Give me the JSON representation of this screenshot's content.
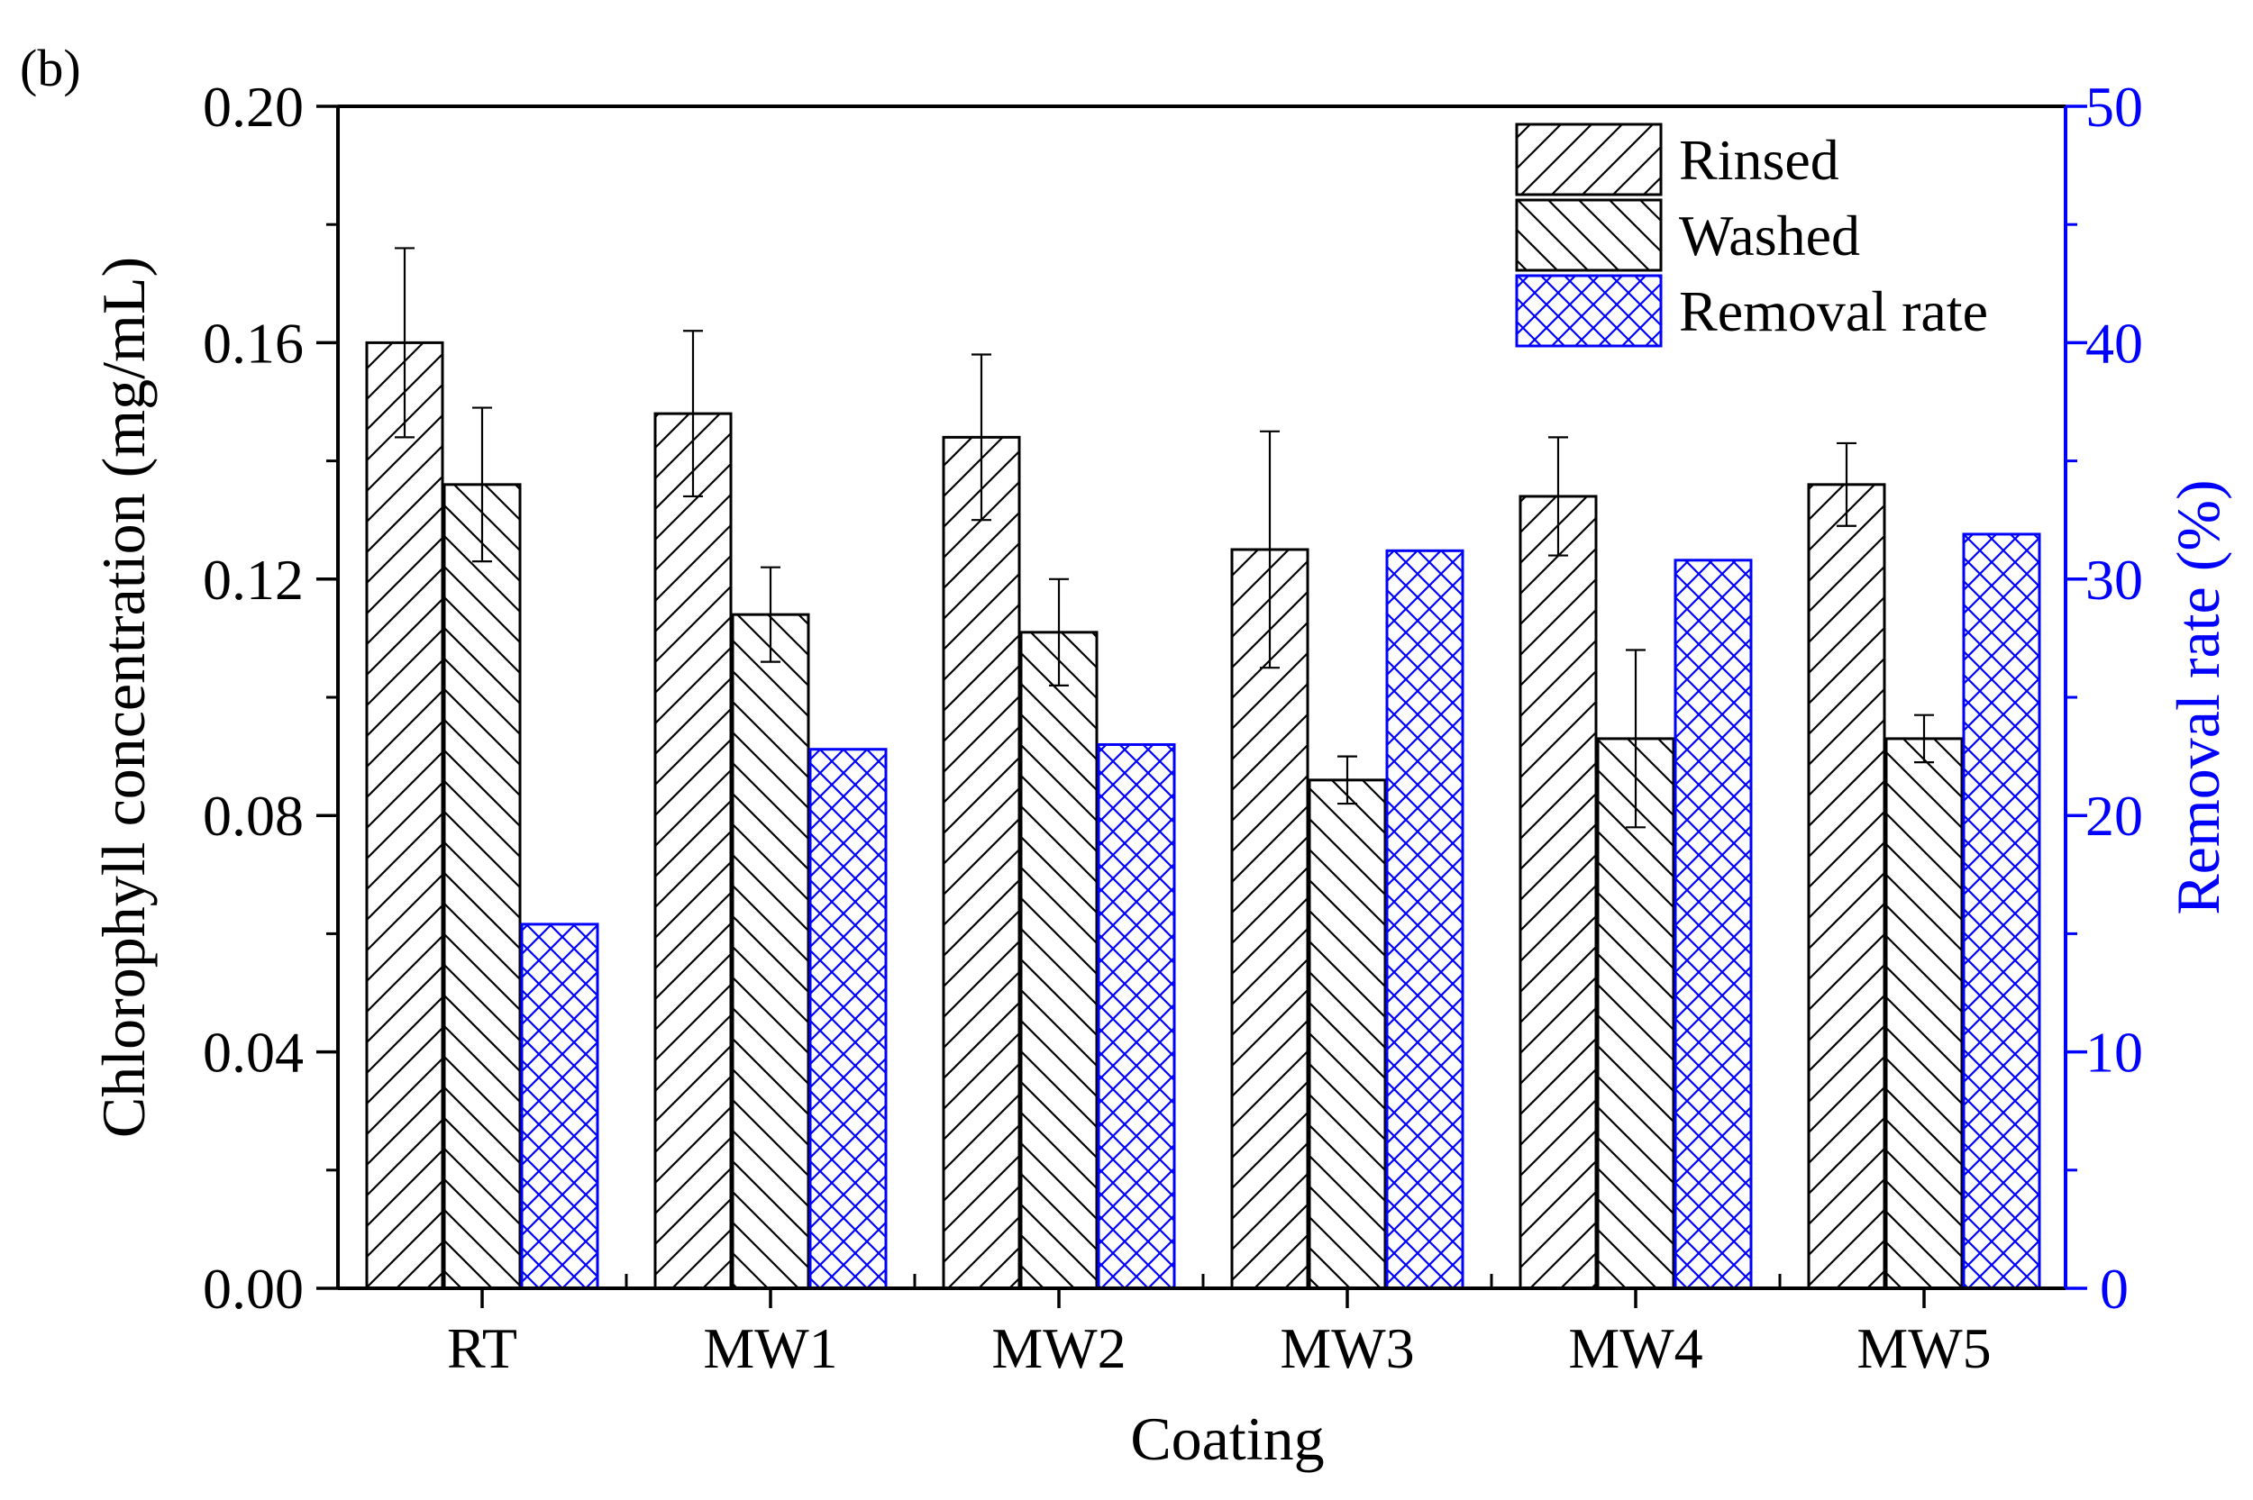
{
  "panel_label": "(b)",
  "chart_data": {
    "type": "bar",
    "title": "",
    "xlabel": "Coating",
    "ylabel": "Chlorophyll concentration (mg/mL)",
    "y2label": "Removal rate (%)",
    "categories": [
      "RT",
      "MW1",
      "MW2",
      "MW3",
      "MW4",
      "MW5"
    ],
    "ylim": [
      0,
      0.2
    ],
    "y2lim": [
      0,
      50
    ],
    "yticks": [
      "0.00",
      "0.04",
      "0.08",
      "0.12",
      "0.16",
      "0.20"
    ],
    "y2ticks": [
      "0",
      "10",
      "20",
      "30",
      "40",
      "50"
    ],
    "legend_position": "top-right",
    "colors": {
      "primary": "#000000",
      "secondary": "#0000ff"
    },
    "series": [
      {
        "name": "Rinsed",
        "axis": "left",
        "pattern": "forward-hatch",
        "color": "#000000",
        "values": [
          0.16,
          0.148,
          0.144,
          0.125,
          0.134,
          0.136
        ],
        "errors": [
          0.016,
          0.014,
          0.014,
          0.02,
          0.01,
          0.007
        ]
      },
      {
        "name": "Washed",
        "axis": "left",
        "pattern": "backward-hatch",
        "color": "#000000",
        "values": [
          0.136,
          0.114,
          0.111,
          0.086,
          0.093,
          0.093
        ],
        "errors": [
          0.013,
          0.008,
          0.009,
          0.004,
          0.015,
          0.004
        ]
      },
      {
        "name": "Removal rate",
        "axis": "right",
        "pattern": "crosshatch",
        "color": "#0000ff",
        "values": [
          15.4,
          22.8,
          23.0,
          31.2,
          30.8,
          31.9
        ],
        "errors": []
      }
    ]
  }
}
